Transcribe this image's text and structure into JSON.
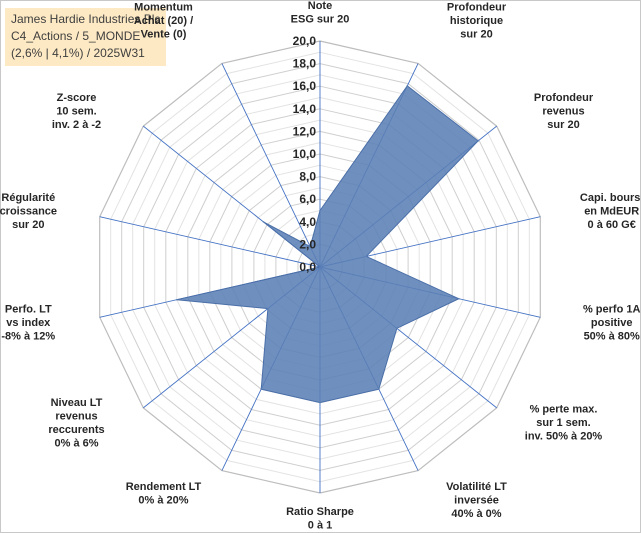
{
  "title_box": {
    "line1": "James Hardie Industries Plc",
    "line2": "C4_Actions / 5_MONDE",
    "line3": "(2,6% | 4,1%) / 2025W31"
  },
  "chart_data": {
    "type": "radar",
    "rmin": 0,
    "rmax": 20,
    "ticks": [
      "0,0",
      "2,0",
      "4,0",
      "6,0",
      "8,0",
      "10,0",
      "12,0",
      "14,0",
      "16,0",
      "18,0",
      "20,0"
    ],
    "grid": true,
    "fill_color": "#5b7fb5",
    "axes": [
      [
        "Note",
        "ESG sur 20"
      ],
      [
        "Profondeur",
        "historique",
        "sur 20"
      ],
      [
        "Profondeur",
        "revenus",
        "sur 20"
      ],
      [
        "Capi. bours.",
        "en MdEUR",
        "0 à 60 G€"
      ],
      [
        "% perfo 1A",
        "positive",
        "50% à 80%"
      ],
      [
        "% perte max.",
        "sur 1 sem.",
        "inv. 50% à 20%"
      ],
      [
        "Volatilité LT",
        "inversée",
        "40% à 0%"
      ],
      [
        "Ratio Sharpe",
        "0 à 1"
      ],
      [
        "Rendement LT",
        "0% à 20%"
      ],
      [
        "Niveau LT",
        "revenus",
        "reccurents",
        "0% à 6%"
      ],
      [
        "Perfo. LT",
        "vs index",
        "-8% à 12%"
      ],
      [
        "Régularité",
        "croissance",
        "sur 20"
      ],
      [
        "Z-score",
        "10 sem.",
        "inv. 2 à -2"
      ],
      [
        "Momentum",
        "Achat (20) /",
        "Vente (0)"
      ]
    ],
    "values": [
      5.0,
      17.8,
      17.9,
      4.2,
      12.6,
      8.7,
      12.0,
      12.0,
      12.0,
      5.9,
      13.0,
      0.0,
      6.4,
      2.0
    ]
  }
}
